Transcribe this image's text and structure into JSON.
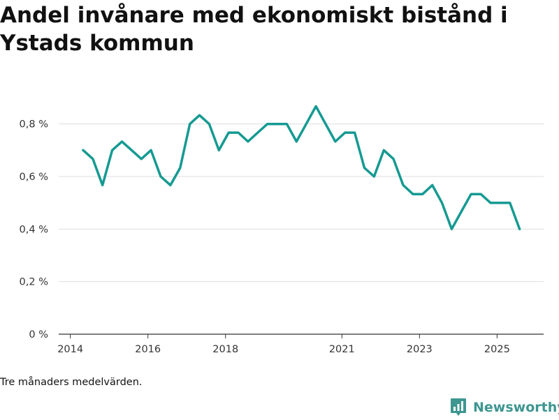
{
  "page": {
    "footnote": "Tre månaders medelvärden.",
    "brand": {
      "name": "Newsworthy",
      "icon": "newsworthy-logo-icon",
      "color": "#3e9690"
    }
  },
  "chart_data": {
    "type": "line",
    "title": "Andel invånare med ekonomiskt bistånd i Ystads kommun",
    "xlabel": "",
    "ylabel": "",
    "ylim": [
      0,
      0.9
    ],
    "y_ticks": [
      {
        "value": 0,
        "label": "0 %"
      },
      {
        "value": 0.2,
        "label": "0,2 %"
      },
      {
        "value": 0.4,
        "label": "0,4 %"
      },
      {
        "value": 0.6,
        "label": "0,6 %"
      },
      {
        "value": 0.8,
        "label": "0,8 %"
      }
    ],
    "x_ticks": [
      {
        "value": 2014.0,
        "label": "2014"
      },
      {
        "value": 2016.0,
        "label": "2016"
      },
      {
        "value": 2018.0,
        "label": "2018"
      },
      {
        "value": 2021.0,
        "label": "2021"
      },
      {
        "value": 2023.0,
        "label": "2023"
      },
      {
        "value": 2025.0,
        "label": "2025"
      }
    ],
    "xlim": [
      2013.7,
      2026.2
    ],
    "grid": true,
    "series": [
      {
        "name": "Andel invånare med ekonomiskt bistånd",
        "color": "#159a92",
        "x": [
          2014.33,
          2014.58,
          2014.83,
          2015.08,
          2015.33,
          2015.58,
          2015.83,
          2016.08,
          2016.33,
          2016.58,
          2016.83,
          2017.08,
          2017.33,
          2017.58,
          2017.83,
          2018.08,
          2018.33,
          2018.58,
          2018.83,
          2019.08,
          2019.33,
          2019.58,
          2019.83,
          2020.08,
          2020.33,
          2020.58,
          2020.83,
          2021.08,
          2021.33,
          2021.58,
          2021.83,
          2022.08,
          2022.33,
          2022.58,
          2022.83,
          2023.08,
          2023.33,
          2023.58,
          2023.83,
          2024.08,
          2024.33,
          2024.58,
          2024.83,
          2025.08,
          2025.33,
          2025.58
        ],
        "y": [
          0.7,
          0.667,
          0.567,
          0.7,
          0.733,
          0.7,
          0.667,
          0.7,
          0.6,
          0.567,
          0.633,
          0.8,
          0.833,
          0.8,
          0.7,
          0.767,
          0.767,
          0.733,
          0.767,
          0.8,
          0.8,
          0.8,
          0.733,
          0.8,
          0.867,
          0.8,
          0.733,
          0.767,
          0.767,
          0.633,
          0.6,
          0.7,
          0.667,
          0.567,
          0.533,
          0.533,
          0.567,
          0.5,
          0.4,
          0.467,
          0.533,
          0.533,
          0.5,
          0.5,
          0.5,
          0.4
        ]
      }
    ]
  }
}
